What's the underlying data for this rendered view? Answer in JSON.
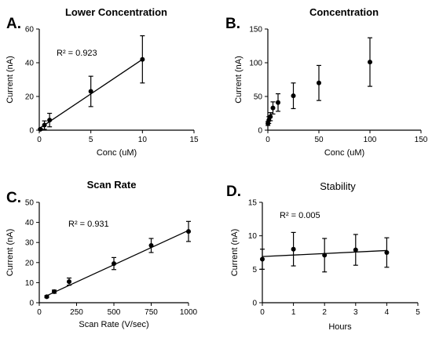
{
  "chart_data": [
    {
      "panel": "A.",
      "type": "scatter",
      "title": "Lower Concentration",
      "title_bold": true,
      "xlabel": "Conc (uM)",
      "ylabel": "Current (nA)",
      "xlim": [
        0,
        15
      ],
      "ylim": [
        0,
        60
      ],
      "xticks": [
        0,
        5,
        10,
        15
      ],
      "yticks": [
        0,
        20,
        40,
        60
      ],
      "annotation": "R² = 0.923",
      "fit_line": [
        [
          0,
          1
        ],
        [
          10,
          42
        ]
      ],
      "points": [
        {
          "x": 0.1,
          "y": 0.5,
          "err": 0.5
        },
        {
          "x": 0.5,
          "y": 3,
          "err": 2.5
        },
        {
          "x": 1,
          "y": 6,
          "err": 4
        },
        {
          "x": 5,
          "y": 23,
          "err": 9
        },
        {
          "x": 10,
          "y": 42,
          "err": 14
        }
      ]
    },
    {
      "panel": "B.",
      "type": "scatter",
      "title": "Concentration",
      "title_bold": true,
      "xlabel": "Conc (uM)",
      "ylabel": "Current (nA)",
      "xlim": [
        0,
        150
      ],
      "ylim": [
        0,
        150
      ],
      "xticks": [
        0,
        50,
        100,
        150
      ],
      "yticks": [
        0,
        50,
        100,
        150
      ],
      "annotation": "",
      "fit_line": null,
      "points": [
        {
          "x": 0.1,
          "y": 10,
          "err": 3
        },
        {
          "x": 1,
          "y": 15,
          "err": 5
        },
        {
          "x": 2.5,
          "y": 20,
          "err": 6
        },
        {
          "x": 5,
          "y": 33,
          "err": 9
        },
        {
          "x": 10,
          "y": 41,
          "err": 13
        },
        {
          "x": 25,
          "y": 51,
          "err": 19
        },
        {
          "x": 50,
          "y": 70,
          "err": 26
        },
        {
          "x": 100,
          "y": 101,
          "err": 36
        }
      ]
    },
    {
      "panel": "C.",
      "type": "scatter",
      "title": "Scan Rate",
      "title_bold": true,
      "xlabel": "Scan Rate (V/sec)",
      "ylabel": "Current (nA)",
      "xlim": [
        0,
        1000
      ],
      "ylim": [
        0,
        50
      ],
      "xticks": [
        0,
        250,
        500,
        750,
        1000
      ],
      "yticks": [
        0,
        10,
        20,
        30,
        40,
        50
      ],
      "annotation": "R² = 0.931",
      "fit_line": [
        [
          50,
          3.5
        ],
        [
          1000,
          36
        ]
      ],
      "points": [
        {
          "x": 50,
          "y": 3,
          "err": 0.5
        },
        {
          "x": 100,
          "y": 5.5,
          "err": 0.8
        },
        {
          "x": 200,
          "y": 10.5,
          "err": 1.8
        },
        {
          "x": 500,
          "y": 19.5,
          "err": 3
        },
        {
          "x": 750,
          "y": 28.5,
          "err": 3.5
        },
        {
          "x": 1000,
          "y": 35.5,
          "err": 5
        }
      ]
    },
    {
      "panel": "D.",
      "type": "scatter",
      "title": "Stability",
      "title_bold": false,
      "xlabel": "Hours",
      "ylabel": "Current (nA)",
      "xlim": [
        0,
        5
      ],
      "ylim": [
        0,
        15
      ],
      "xticks": [
        0,
        1,
        2,
        3,
        4,
        5
      ],
      "yticks": [
        0,
        5,
        10,
        15
      ],
      "annotation": "R² = 0.005",
      "fit_line": [
        [
          0,
          6.9
        ],
        [
          4,
          7.8
        ]
      ],
      "points": [
        {
          "x": 0,
          "y": 6.5,
          "err": 1.5
        },
        {
          "x": 1,
          "y": 8,
          "err": 2.5
        },
        {
          "x": 2,
          "y": 7.1,
          "err": 2.5
        },
        {
          "x": 3,
          "y": 7.9,
          "err": 2.3
        },
        {
          "x": 4,
          "y": 7.5,
          "err": 2.2
        }
      ]
    }
  ]
}
